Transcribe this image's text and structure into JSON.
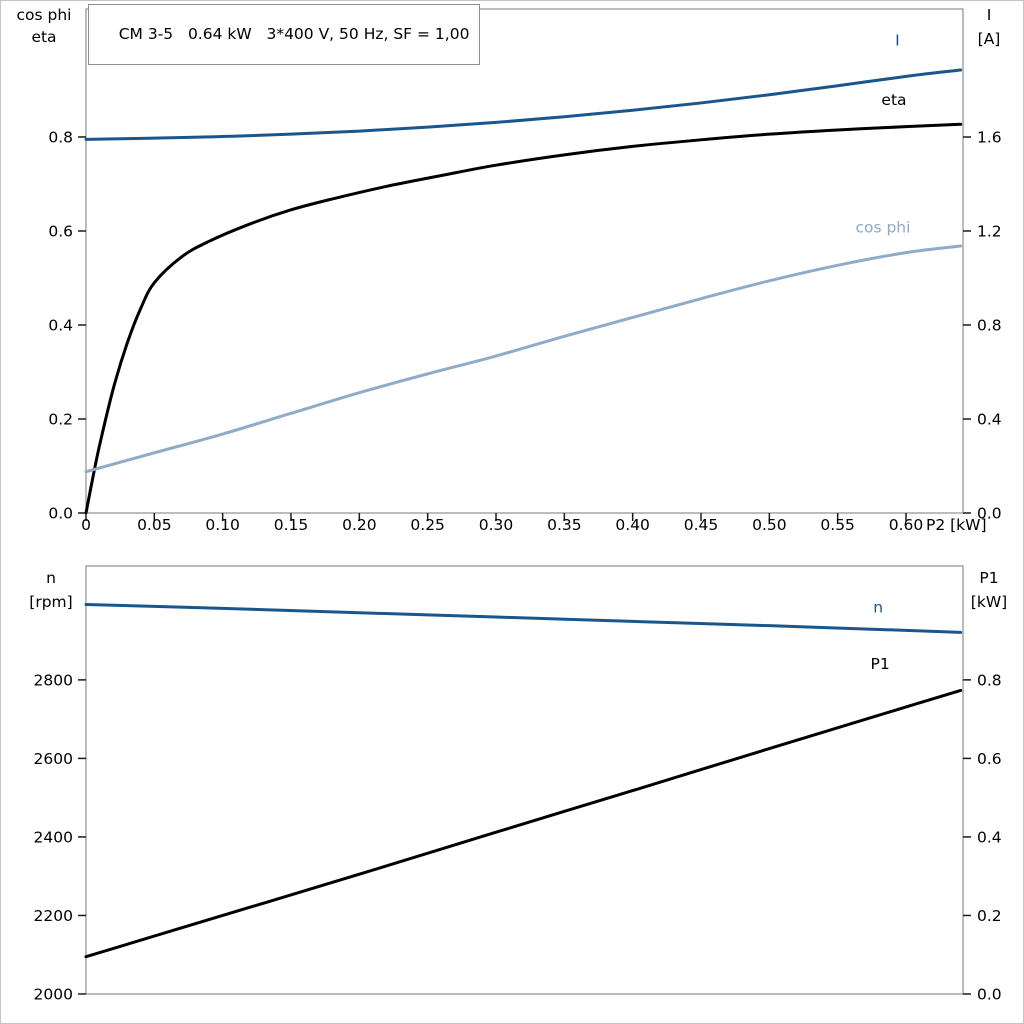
{
  "title": "CM 3-5   0.64 kW   3*400 V, 50 Hz, SF = 1,00",
  "style": {
    "frame_color": "#8f8f8f",
    "tick_color": "#1a1a1a",
    "black": "#000000",
    "dark_blue": "#1a568e",
    "light_blue": "#8fabc8"
  },
  "chart_data": [
    {
      "id": "top",
      "type": "line",
      "x_axis": {
        "min": 0,
        "max": 0.6417,
        "title": "P2 [kW]",
        "ticks": [
          0,
          0.05,
          0.1,
          0.15,
          0.2,
          0.25,
          0.3,
          0.35,
          0.4,
          0.45,
          0.5,
          0.55,
          0.6
        ],
        "tick_labels": [
          "0",
          "0.05",
          "0.10",
          "0.15",
          "0.20",
          "0.25",
          "0.30",
          "0.35",
          "0.40",
          "0.45",
          "0.50",
          "0.55",
          "0.60"
        ]
      },
      "left_axis": {
        "min": 0,
        "max": 1.0723,
        "title": [
          "cos phi",
          "eta"
        ],
        "ticks": [
          0,
          0.2,
          0.4,
          0.6,
          0.8
        ],
        "tick_labels": [
          "0.0",
          "0.2",
          "0.4",
          "0.6",
          "0.8"
        ]
      },
      "right_axis": {
        "min": 0,
        "max": 2.1447,
        "title": [
          "I",
          "[A]"
        ],
        "ticks": [
          0,
          0.4,
          0.8,
          1.2,
          1.6
        ],
        "tick_labels": [
          "0.0",
          "0.4",
          "0.8",
          "1.2",
          "1.6"
        ]
      },
      "series": [
        {
          "name": "I",
          "axis": "right",
          "color_key": "dark_blue",
          "width": 3,
          "label_at": [
            0.592,
            1.99
          ],
          "points": [
            [
              0,
              1.59
            ],
            [
              0.05,
              1.595
            ],
            [
              0.1,
              1.602
            ],
            [
              0.15,
              1.612
            ],
            [
              0.2,
              1.625
            ],
            [
              0.25,
              1.642
            ],
            [
              0.3,
              1.662
            ],
            [
              0.35,
              1.686
            ],
            [
              0.4,
              1.714
            ],
            [
              0.45,
              1.745
            ],
            [
              0.5,
              1.78
            ],
            [
              0.55,
              1.818
            ],
            [
              0.6,
              1.858
            ],
            [
              0.64,
              1.885
            ]
          ]
        },
        {
          "name": "eta",
          "axis": "left",
          "color_key": "black",
          "width": 3,
          "label_at": [
            0.582,
            0.868
          ],
          "points": [
            [
              0,
              0
            ],
            [
              0.005,
              0.075
            ],
            [
              0.01,
              0.145
            ],
            [
              0.02,
              0.265
            ],
            [
              0.03,
              0.36
            ],
            [
              0.04,
              0.435
            ],
            [
              0.05,
              0.49
            ],
            [
              0.07,
              0.545
            ],
            [
              0.09,
              0.578
            ],
            [
              0.12,
              0.615
            ],
            [
              0.15,
              0.645
            ],
            [
              0.18,
              0.668
            ],
            [
              0.22,
              0.695
            ],
            [
              0.26,
              0.718
            ],
            [
              0.3,
              0.74
            ],
            [
              0.35,
              0.762
            ],
            [
              0.4,
              0.78
            ],
            [
              0.45,
              0.794
            ],
            [
              0.5,
              0.806
            ],
            [
              0.55,
              0.815
            ],
            [
              0.6,
              0.822
            ],
            [
              0.64,
              0.827
            ]
          ]
        },
        {
          "name": "cos phi",
          "axis": "left",
          "color_key": "light_blue",
          "width": 3,
          "label_at": [
            0.563,
            0.597
          ],
          "points": [
            [
              0,
              0.088
            ],
            [
              0.05,
              0.128
            ],
            [
              0.1,
              0.168
            ],
            [
              0.15,
              0.212
            ],
            [
              0.2,
              0.256
            ],
            [
              0.25,
              0.296
            ],
            [
              0.3,
              0.334
            ],
            [
              0.35,
              0.376
            ],
            [
              0.4,
              0.416
            ],
            [
              0.45,
              0.456
            ],
            [
              0.5,
              0.494
            ],
            [
              0.55,
              0.527
            ],
            [
              0.6,
              0.554
            ],
            [
              0.64,
              0.568
            ]
          ]
        }
      ]
    },
    {
      "id": "bottom",
      "type": "line",
      "x_axis": {
        "min": 0,
        "max": 0.6417,
        "title": "",
        "ticks": [],
        "tick_labels": []
      },
      "left_axis": {
        "min": 2000,
        "max": 3090,
        "title": [
          "n",
          "[rpm]"
        ],
        "ticks": [
          2000,
          2200,
          2400,
          2600,
          2800
        ],
        "tick_labels": [
          "2000",
          "2200",
          "2400",
          "2600",
          "2800"
        ]
      },
      "right_axis": {
        "min": 0,
        "max": 1.09,
        "title": [
          "P1",
          "[kW]"
        ],
        "ticks": [
          0,
          0.2,
          0.4,
          0.6,
          0.8
        ],
        "tick_labels": [
          "0.0",
          "0.2",
          "0.4",
          "0.6",
          "0.8"
        ]
      },
      "series": [
        {
          "name": "n",
          "axis": "left",
          "color_key": "dark_blue",
          "width": 3,
          "label_at": [
            0.576,
            2972
          ],
          "points": [
            [
              0,
              2992
            ],
            [
              0.1,
              2982
            ],
            [
              0.2,
              2971
            ],
            [
              0.3,
              2960
            ],
            [
              0.4,
              2949
            ],
            [
              0.5,
              2938
            ],
            [
              0.6,
              2926
            ],
            [
              0.64,
              2921
            ]
          ]
        },
        {
          "name": "P1",
          "axis": "right",
          "color_key": "black",
          "width": 3,
          "label_at": [
            0.574,
            0.828
          ],
          "points": [
            [
              0,
              0.095
            ],
            [
              0.1,
              0.2
            ],
            [
              0.2,
              0.305
            ],
            [
              0.3,
              0.412
            ],
            [
              0.4,
              0.518
            ],
            [
              0.5,
              0.625
            ],
            [
              0.6,
              0.731
            ],
            [
              0.64,
              0.773
            ]
          ]
        }
      ]
    }
  ]
}
